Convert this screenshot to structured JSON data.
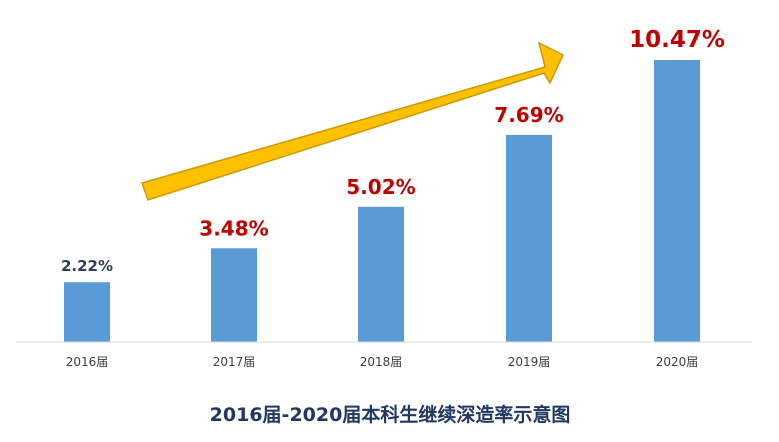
{
  "chart_data": {
    "type": "bar",
    "title": "2016届-2020届本科生继续深造率示意图",
    "categories": [
      "2016届",
      "2017届",
      "2018届",
      "2019届",
      "2020届"
    ],
    "values": [
      2.22,
      3.48,
      5.02,
      7.69,
      10.47
    ],
    "data_labels": [
      "2.22%",
      "3.48%",
      "5.02%",
      "7.69%",
      "10.47%"
    ],
    "unit": "%",
    "xlabel": "",
    "ylabel": "",
    "ylim": [
      0,
      10.47
    ],
    "grid": false,
    "legend": "none",
    "trend_arrow": "upward arrow spanning 2016届 to 2020届",
    "colors": {
      "bar": "#5b9bd5",
      "first_label": "#2f3f56",
      "highlight_label": "#c00000",
      "arrow_fill": "#ffc000",
      "arrow_stroke": "#c99a06",
      "axis": "#d9d9d9",
      "title": "#1f3864"
    }
  }
}
